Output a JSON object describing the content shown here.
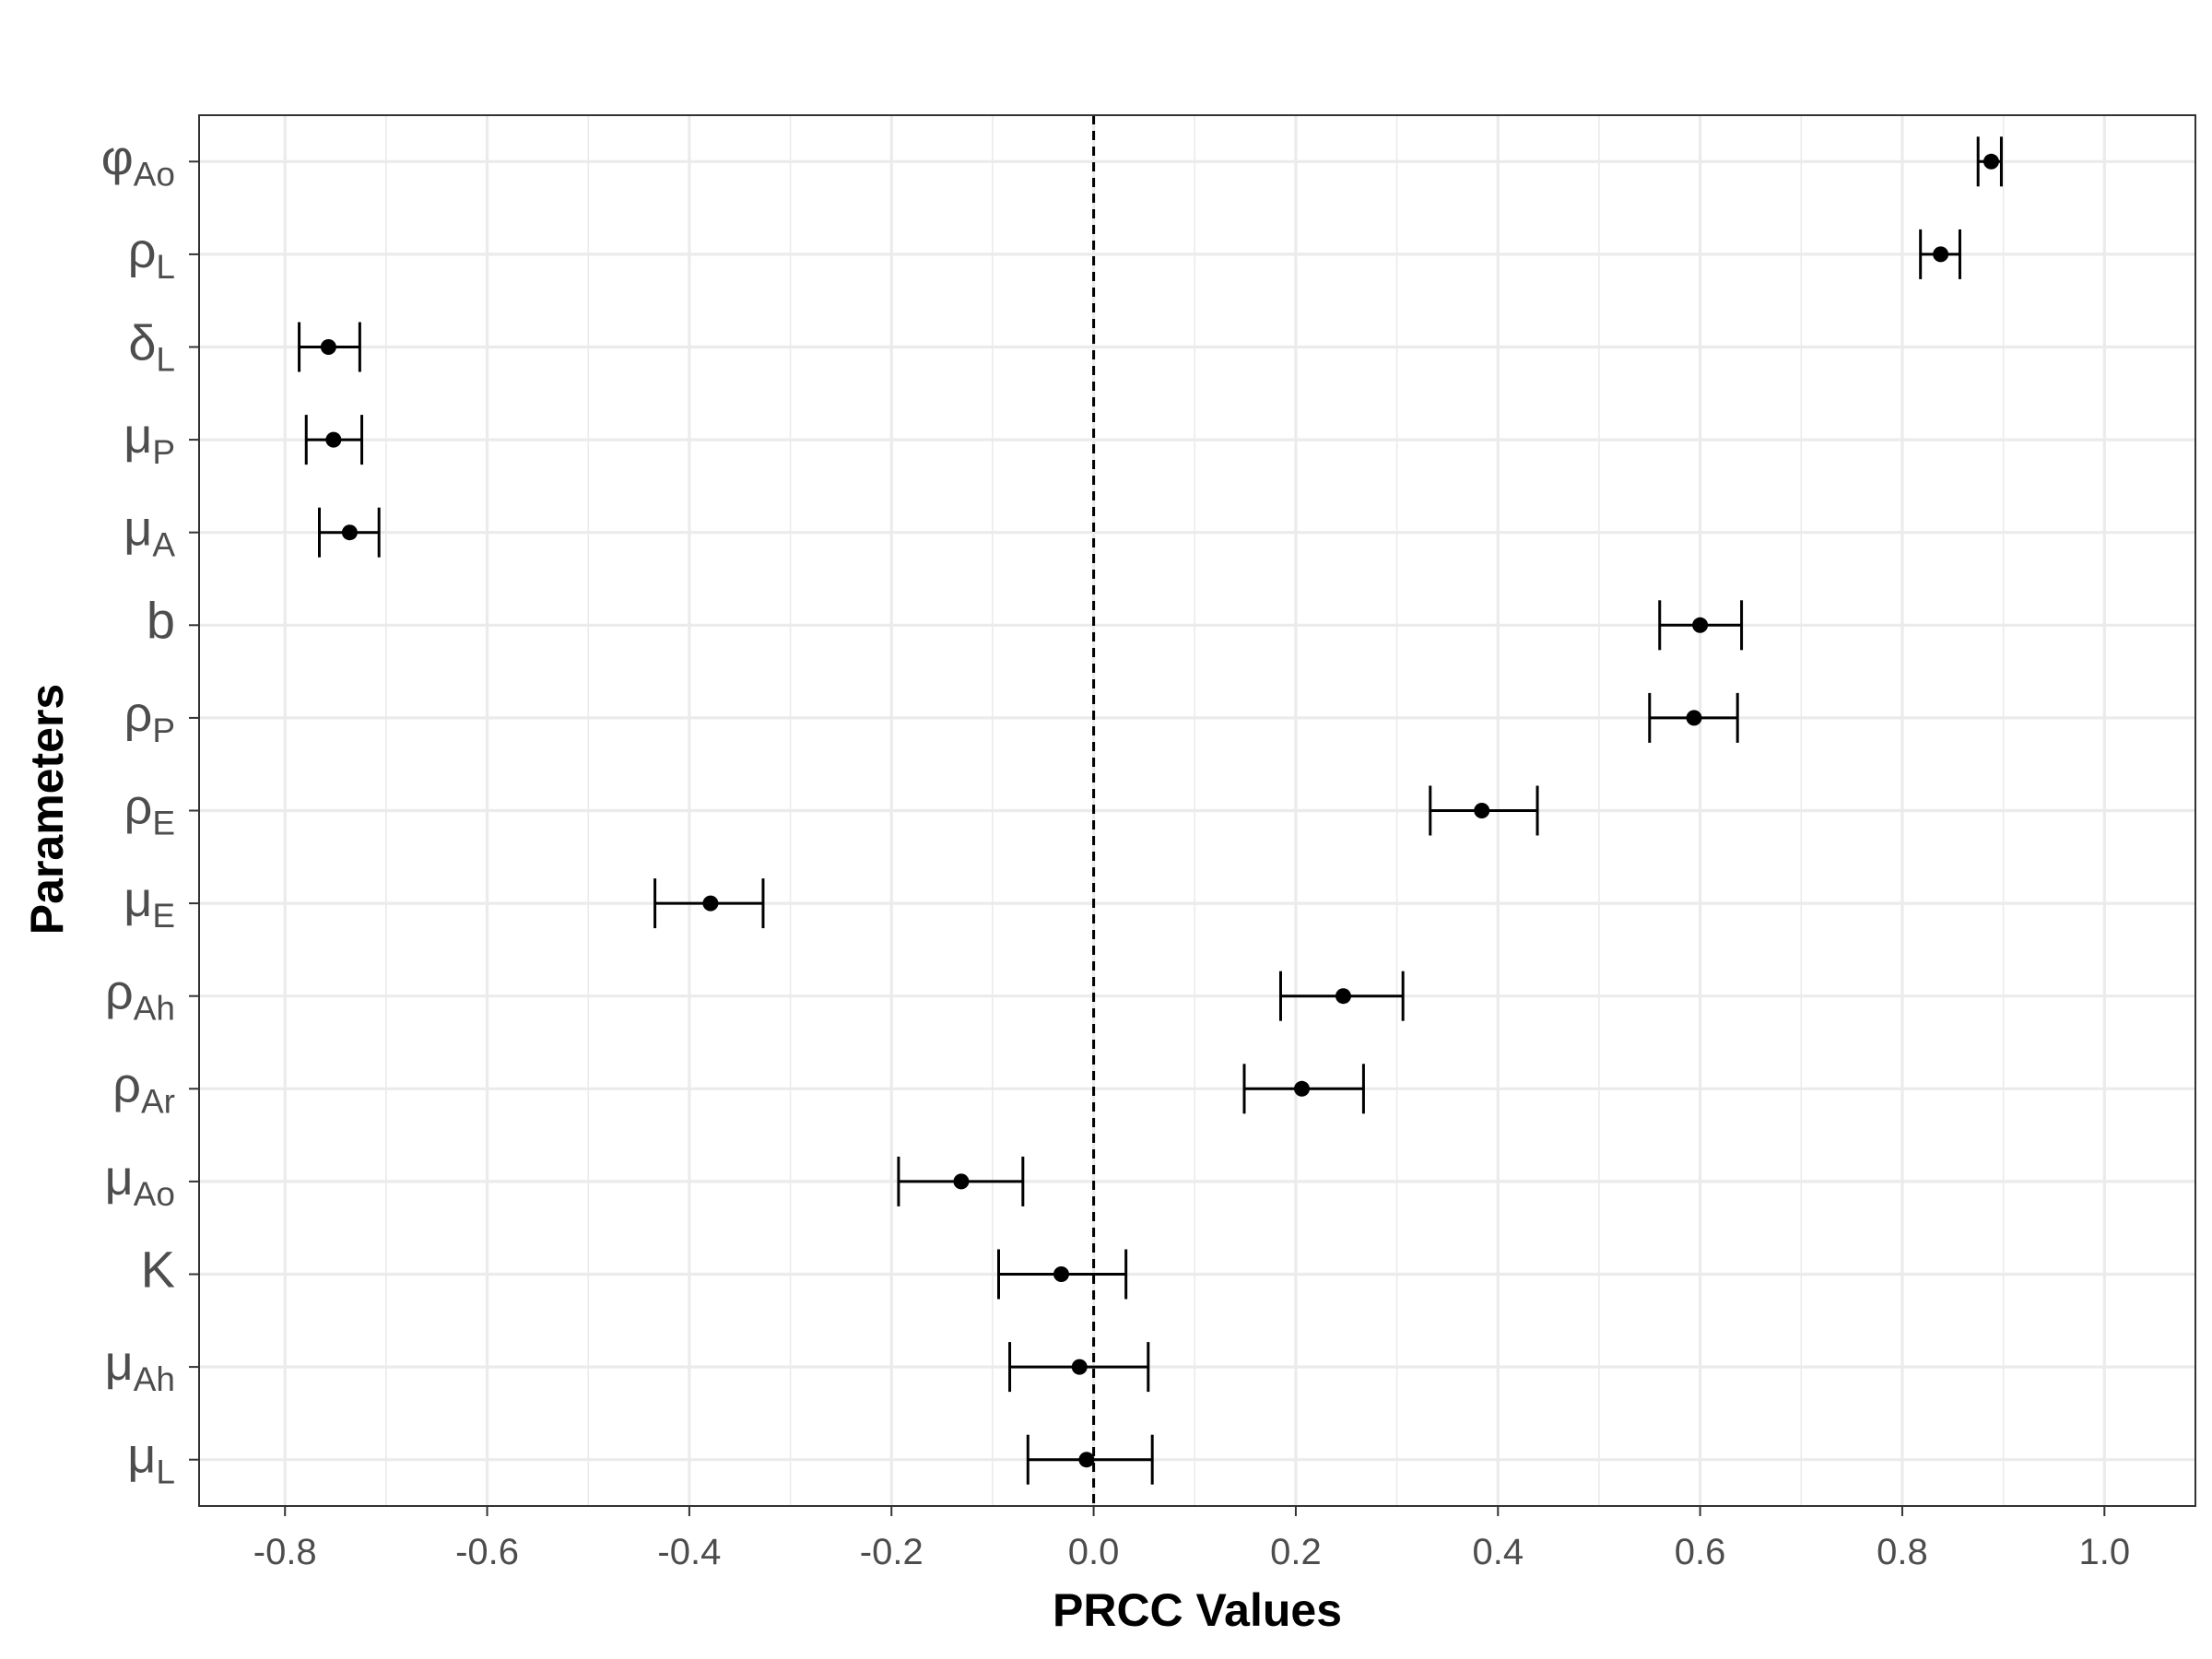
{
  "chart_data": {
    "type": "scatter",
    "xlabel": "PRCC Values",
    "ylabel": "Parameters",
    "xlim": [
      -0.885,
      1.09
    ],
    "x_ticks": [
      "-0.8",
      "-0.6",
      "-0.4",
      "-0.2",
      "0.0",
      "0.2",
      "0.4",
      "0.6",
      "0.8",
      "1.0"
    ],
    "x_tick_values": [
      -0.8,
      -0.6,
      -0.4,
      -0.2,
      0.0,
      0.2,
      0.4,
      0.6,
      0.8,
      1.0
    ],
    "reference_line_x": 0.0,
    "grid": true,
    "error_bars": true,
    "parameters": [
      {
        "base": "φ",
        "sub": "Ao",
        "value": 0.888,
        "low": 0.875,
        "high": 0.898
      },
      {
        "base": "ρ",
        "sub": "L",
        "value": 0.838,
        "low": 0.818,
        "high": 0.857
      },
      {
        "base": "δ",
        "sub": "L",
        "value": -0.757,
        "low": -0.786,
        "high": -0.726
      },
      {
        "base": "μ",
        "sub": "P",
        "value": -0.752,
        "low": -0.779,
        "high": -0.724
      },
      {
        "base": "μ",
        "sub": "A",
        "value": -0.736,
        "low": -0.766,
        "high": -0.707
      },
      {
        "base": "b",
        "sub": "",
        "value": 0.6,
        "low": 0.56,
        "high": 0.641
      },
      {
        "base": "ρ",
        "sub": "P",
        "value": 0.594,
        "low": 0.55,
        "high": 0.637
      },
      {
        "base": "ρ",
        "sub": "E",
        "value": 0.384,
        "low": 0.333,
        "high": 0.439
      },
      {
        "base": "μ",
        "sub": "E",
        "value": -0.379,
        "low": -0.434,
        "high": -0.327
      },
      {
        "base": "ρ",
        "sub": "Ah",
        "value": 0.247,
        "low": 0.185,
        "high": 0.306
      },
      {
        "base": "ρ",
        "sub": "Ar",
        "value": 0.206,
        "low": 0.149,
        "high": 0.267
      },
      {
        "base": "μ",
        "sub": "Ao",
        "value": -0.131,
        "low": -0.193,
        "high": -0.07
      },
      {
        "base": "K",
        "sub": "",
        "value": -0.032,
        "low": -0.094,
        "high": 0.032
      },
      {
        "base": "μ",
        "sub": "Ah",
        "value": -0.014,
        "low": -0.083,
        "high": 0.054
      },
      {
        "base": "μ",
        "sub": "L",
        "value": -0.007,
        "low": -0.065,
        "high": 0.058
      }
    ]
  }
}
